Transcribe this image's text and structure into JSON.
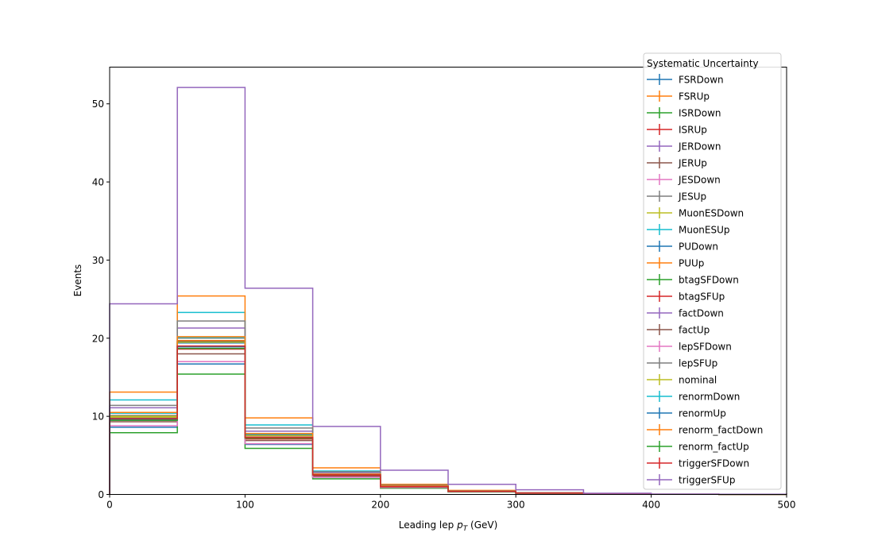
{
  "chart_data": {
    "type": "line",
    "drawstyle": "steps",
    "xlabel_prefix": "Leading lep ",
    "xlabel_var": "p",
    "xlabel_sub": "T",
    "xlabel_suffix": " (GeV)",
    "ylabel": "Events",
    "xlim": [
      0,
      500
    ],
    "ylim": [
      0,
      54.7
    ],
    "x_ticks": [
      0,
      100,
      200,
      300,
      400,
      500
    ],
    "y_ticks": [
      0,
      10,
      20,
      30,
      40,
      50
    ],
    "bin_edges": [
      0,
      50,
      100,
      150,
      200,
      250,
      300,
      350,
      400,
      450,
      500
    ],
    "grid": false,
    "legend_title": "Systematic Uncertainty",
    "legend_position": "top-right",
    "series": [
      {
        "name": "FSRDown",
        "color": "#1f77b4",
        "values": [
          9.8,
          19.4,
          7.4,
          2.5,
          1.0,
          0.4,
          0.18,
          0.08,
          0.03,
          0.01
        ]
      },
      {
        "name": "FSRUp",
        "color": "#ff7f0e",
        "values": [
          10.0,
          19.7,
          7.6,
          2.6,
          1.0,
          0.42,
          0.19,
          0.08,
          0.03,
          0.01
        ]
      },
      {
        "name": "ISRDown",
        "color": "#2ca02c",
        "values": [
          9.9,
          19.5,
          7.5,
          2.5,
          1.0,
          0.41,
          0.18,
          0.08,
          0.03,
          0.01
        ]
      },
      {
        "name": "ISRUp",
        "color": "#d62728",
        "values": [
          10.0,
          19.6,
          7.5,
          2.5,
          1.0,
          0.41,
          0.18,
          0.08,
          0.03,
          0.01
        ]
      },
      {
        "name": "JERDown",
        "color": "#9467bd",
        "values": [
          10.0,
          19.6,
          7.6,
          2.6,
          1.0,
          0.41,
          0.18,
          0.08,
          0.03,
          0.01
        ]
      },
      {
        "name": "JERUp",
        "color": "#8c564b",
        "values": [
          10.1,
          19.6,
          7.6,
          2.6,
          1.0,
          0.41,
          0.18,
          0.08,
          0.03,
          0.01
        ]
      },
      {
        "name": "JESDown",
        "color": "#e377c2",
        "values": [
          9.9,
          19.5,
          7.4,
          2.5,
          1.0,
          0.4,
          0.18,
          0.08,
          0.03,
          0.01
        ]
      },
      {
        "name": "JESUp",
        "color": "#7f7f7f",
        "values": [
          10.1,
          20.0,
          7.7,
          2.6,
          1.0,
          0.42,
          0.19,
          0.08,
          0.03,
          0.01
        ]
      },
      {
        "name": "MuonESDown",
        "color": "#bcbd22",
        "values": [
          9.9,
          19.5,
          7.5,
          2.5,
          1.0,
          0.4,
          0.18,
          0.08,
          0.03,
          0.01
        ]
      },
      {
        "name": "MuonESUp",
        "color": "#17becf",
        "values": [
          12.1,
          23.3,
          8.9,
          3.0,
          1.2,
          0.48,
          0.21,
          0.09,
          0.03,
          0.01
        ]
      },
      {
        "name": "PUDown",
        "color": "#1f77b4",
        "values": [
          8.6,
          16.7,
          6.4,
          2.2,
          0.9,
          0.35,
          0.16,
          0.07,
          0.02,
          0.01
        ]
      },
      {
        "name": "PUUp",
        "color": "#ff7f0e",
        "values": [
          13.1,
          25.4,
          9.8,
          3.4,
          1.3,
          0.52,
          0.23,
          0.1,
          0.04,
          0.01
        ]
      },
      {
        "name": "btagSFDown",
        "color": "#2ca02c",
        "values": [
          7.9,
          15.4,
          5.9,
          2.0,
          0.8,
          0.32,
          0.15,
          0.06,
          0.02,
          0.01
        ]
      },
      {
        "name": "btagSFUp",
        "color": "#d62728",
        "values": [
          9.5,
          18.6,
          7.1,
          2.4,
          1.0,
          0.39,
          0.17,
          0.07,
          0.03,
          0.01
        ]
      },
      {
        "name": "factDown",
        "color": "#9467bd",
        "values": [
          11.1,
          21.3,
          8.1,
          2.8,
          1.1,
          0.44,
          0.2,
          0.08,
          0.03,
          0.01
        ]
      },
      {
        "name": "factUp",
        "color": "#8c564b",
        "values": [
          9.3,
          18.0,
          6.9,
          2.3,
          0.9,
          0.38,
          0.17,
          0.07,
          0.03,
          0.01
        ]
      },
      {
        "name": "lepSFDown",
        "color": "#e377c2",
        "values": [
          8.8,
          17.0,
          6.5,
          2.2,
          0.9,
          0.36,
          0.16,
          0.07,
          0.02,
          0.01
        ]
      },
      {
        "name": "lepSFUp",
        "color": "#7f7f7f",
        "values": [
          11.4,
          22.2,
          8.5,
          2.9,
          1.2,
          0.46,
          0.21,
          0.09,
          0.03,
          0.01
        ]
      },
      {
        "name": "nominal",
        "color": "#bcbd22",
        "values": [
          10.0,
          19.5,
          7.5,
          2.6,
          1.0,
          0.41,
          0.18,
          0.08,
          0.03,
          0.01
        ]
      },
      {
        "name": "renormDown",
        "color": "#17becf",
        "values": [
          10.4,
          20.1,
          7.7,
          2.6,
          1.1,
          0.42,
          0.19,
          0.08,
          0.03,
          0.01
        ]
      },
      {
        "name": "renormUp",
        "color": "#1f77b4",
        "values": [
          9.6,
          18.9,
          7.3,
          2.5,
          1.0,
          0.4,
          0.18,
          0.07,
          0.03,
          0.01
        ]
      },
      {
        "name": "renorm_factDown",
        "color": "#ff7f0e",
        "values": [
          10.5,
          20.2,
          7.8,
          2.6,
          1.1,
          0.43,
          0.19,
          0.08,
          0.03,
          0.01
        ]
      },
      {
        "name": "renorm_factUp",
        "color": "#2ca02c",
        "values": [
          9.5,
          18.7,
          7.2,
          2.5,
          1.0,
          0.39,
          0.17,
          0.07,
          0.03,
          0.01
        ]
      },
      {
        "name": "triggerSFDown",
        "color": "#d62728",
        "values": [
          9.7,
          19.0,
          7.3,
          2.5,
          1.0,
          0.4,
          0.18,
          0.08,
          0.03,
          0.01
        ]
      },
      {
        "name": "triggerSFUp",
        "color": "#9467bd",
        "values": [
          24.4,
          52.1,
          26.4,
          8.7,
          3.1,
          1.3,
          0.6,
          0.15,
          0.05,
          0.02
        ]
      }
    ]
  }
}
